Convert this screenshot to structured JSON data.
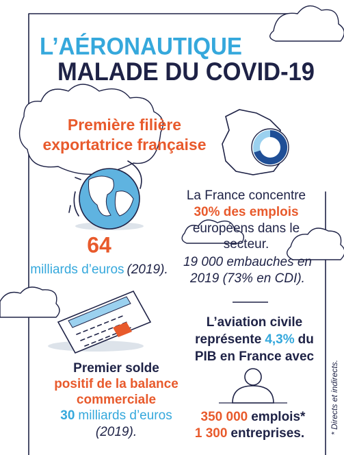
{
  "title": {
    "line1": "L’AÉRONAUTIQUE",
    "line2": "MALADE DU COVID-19"
  },
  "exports": {
    "heading": [
      "Première filière",
      "exportatrice française"
    ],
    "value": "64",
    "unit": "milliards d’euros",
    "year": "(2019)."
  },
  "employment": {
    "lines": [
      "La France concentre",
      "30% des emplois",
      "européens dans le",
      "secteur."
    ],
    "hiring": [
      "19 000 embauches en",
      "2019 (73% en CDI)."
    ]
  },
  "trade_balance": {
    "lines": [
      "Premier solde",
      "positif de la balance",
      "commerciale"
    ],
    "amount": "30",
    "unit": "milliards d’euros",
    "year": "(2019)."
  },
  "civil_aviation": {
    "intro": "L’aviation civile",
    "share_prefix": "représente",
    "share": "4,3%",
    "share_suffix": "du",
    "line3": "PIB en France avec",
    "jobs": "350 000",
    "jobs_unit": "emplois*",
    "companies": "1 300",
    "companies_unit": "entreprises."
  },
  "footnote": "* Directs et indirects."
}
